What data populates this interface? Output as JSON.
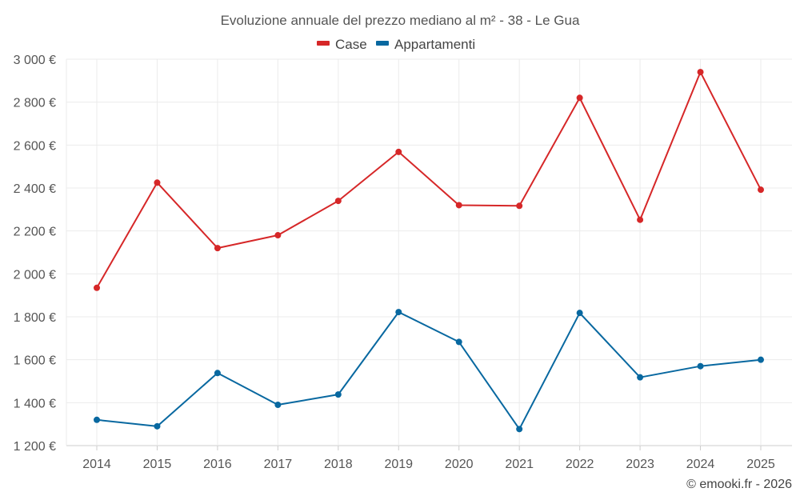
{
  "chart_data": {
    "type": "line",
    "title": "Evoluzione annuale del prezzo mediano al m² - 38 - Le Gua",
    "categories": [
      "2014",
      "2015",
      "2016",
      "2017",
      "2018",
      "2019",
      "2020",
      "2021",
      "2022",
      "2023",
      "2024",
      "2025"
    ],
    "series": [
      {
        "name": "Case",
        "color": "#d62728",
        "values": [
          1935,
          2425,
          2120,
          2180,
          2340,
          2568,
          2320,
          2317,
          2820,
          2252,
          2940,
          2392
        ]
      },
      {
        "name": "Appartamenti",
        "color": "#0868a0",
        "values": [
          1320,
          1290,
          1538,
          1390,
          1438,
          1822,
          1683,
          1277,
          1818,
          1518,
          1570,
          1600
        ]
      }
    ],
    "ylim": [
      1200,
      3000
    ],
    "yticks": [
      1200,
      1400,
      1600,
      1800,
      2000,
      2200,
      2400,
      2600,
      2800,
      3000
    ],
    "ytick_labels": [
      "1 200 €",
      "1 400 €",
      "1 600 €",
      "1 800 €",
      "2 000 €",
      "2 200 €",
      "2 400 €",
      "2 600 €",
      "2 800 €",
      "3 000 €"
    ],
    "xlabel": "",
    "ylabel": "",
    "legend_position": "top-center",
    "grid": true
  },
  "credit": "© emooki.fr - 2026"
}
